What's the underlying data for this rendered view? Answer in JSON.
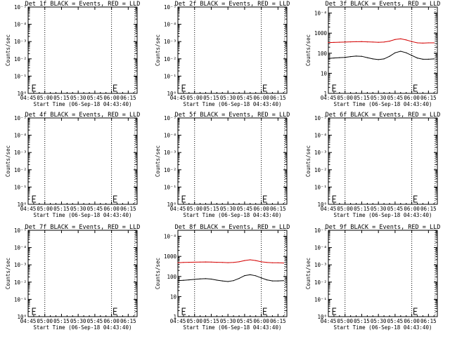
{
  "page": {
    "background": "#ffffff",
    "axis_color": "#000000"
  },
  "x_tick_labels": [
    "04:45",
    "05:00",
    "05:15",
    "05:30",
    "05:45",
    "06:00",
    "06:15"
  ],
  "x_tick_minutes": [
    285,
    300,
    315,
    330,
    345,
    360,
    375
  ],
  "xlim_minutes": [
    285,
    383
  ],
  "xlabel": "Start Time (06-Sep-18 04:43:40)",
  "ylabel": "Counts/sec",
  "chart_data": [
    {
      "id": "det1",
      "type": "line",
      "title": "Det 1f BLACK = Events, RED = LLD",
      "scale": "log",
      "yticks": [
        1,
        10,
        100,
        1000,
        10000,
        100000
      ],
      "ytick_labels": [
        "10⁰",
        "10⁻¹",
        "10⁻²",
        "10⁻³",
        "10⁻⁴",
        "10⁻⁵"
      ],
      "ylim": [
        1,
        100000
      ],
      "dotted_vlines_minutes": [
        300,
        360,
        381
      ],
      "error_markers_minutes": [
        287,
        360
      ],
      "series": []
    },
    {
      "id": "det2",
      "type": "line",
      "title": "Det 2f BLACK = Events, RED = LLD",
      "scale": "log",
      "yticks": [
        1,
        10,
        100,
        1000,
        10000,
        100000
      ],
      "ytick_labels": [
        "10⁰",
        "10⁻¹",
        "10⁻²",
        "10⁻³",
        "10⁻⁴",
        "10⁻⁵"
      ],
      "ylim": [
        1,
        100000
      ],
      "dotted_vlines_minutes": [
        300,
        360,
        381
      ],
      "error_markers_minutes": [
        287,
        360
      ],
      "series": []
    },
    {
      "id": "det3",
      "type": "line",
      "title": "Det 3f BLACK = Events, RED = LLD",
      "scale": "log",
      "yticks": [
        1,
        10,
        100,
        1000,
        10000
      ],
      "ytick_labels": [
        "1",
        "10",
        "100",
        "1000",
        "10⁻⁴"
      ],
      "ylim": [
        1,
        20000
      ],
      "dotted_vlines_minutes": [
        300,
        360,
        381
      ],
      "error_markers_minutes": [
        287,
        360
      ],
      "series": [
        {
          "color": "#d40000",
          "x": [
            285,
            290,
            295,
            300,
            305,
            310,
            315,
            320,
            325,
            330,
            335,
            340,
            345,
            350,
            355,
            360,
            365,
            370,
            375,
            380
          ],
          "y": [
            340,
            345,
            355,
            360,
            370,
            375,
            380,
            370,
            360,
            350,
            360,
            400,
            480,
            520,
            460,
            380,
            330,
            320,
            330,
            330
          ]
        },
        {
          "color": "#000000",
          "x": [
            285,
            290,
            295,
            300,
            305,
            310,
            315,
            320,
            325,
            330,
            335,
            340,
            345,
            350,
            355,
            360,
            365,
            370,
            375,
            380
          ],
          "y": [
            55,
            58,
            60,
            62,
            68,
            72,
            70,
            60,
            52,
            48,
            52,
            70,
            105,
            125,
            105,
            78,
            58,
            50,
            50,
            52
          ]
        }
      ]
    },
    {
      "id": "det4",
      "type": "line",
      "title": "Det 4f BLACK = Events, RED = LLD",
      "scale": "log",
      "yticks": [
        1,
        10,
        100,
        1000,
        10000,
        100000
      ],
      "ytick_labels": [
        "10⁰",
        "10⁻¹",
        "10⁻²",
        "10⁻³",
        "10⁻⁴",
        "10⁻⁵"
      ],
      "ylim": [
        1,
        100000
      ],
      "dotted_vlines_minutes": [
        300,
        360,
        381
      ],
      "error_markers_minutes": [
        287,
        360
      ],
      "series": []
    },
    {
      "id": "det5",
      "type": "line",
      "title": "Det 5f BLACK = Events, RED = LLD",
      "scale": "log",
      "yticks": [
        1,
        10,
        100,
        1000,
        10000,
        100000
      ],
      "ytick_labels": [
        "10⁰",
        "10⁻¹",
        "10⁻²",
        "10⁻³",
        "10⁻⁴",
        "10⁻⁵"
      ],
      "ylim": [
        1,
        100000
      ],
      "dotted_vlines_minutes": [
        300,
        360,
        381
      ],
      "error_markers_minutes": [
        287,
        360
      ],
      "series": []
    },
    {
      "id": "det6",
      "type": "line",
      "title": "Det 6f BLACK = Events, RED = LLD",
      "scale": "log",
      "yticks": [
        1,
        10,
        100,
        1000,
        10000,
        100000
      ],
      "ytick_labels": [
        "10⁰",
        "10⁻¹",
        "10⁻²",
        "10⁻³",
        "10⁻⁴",
        "10⁻⁵"
      ],
      "ylim": [
        1,
        100000
      ],
      "dotted_vlines_minutes": [
        300,
        360,
        381
      ],
      "error_markers_minutes": [
        287,
        360
      ],
      "series": []
    },
    {
      "id": "det7",
      "type": "line",
      "title": "Det 7f BLACK = Events, RED = LLD",
      "scale": "log",
      "yticks": [
        1,
        10,
        100,
        1000,
        10000,
        100000
      ],
      "ytick_labels": [
        "10⁰",
        "10⁻¹",
        "10⁻²",
        "10⁻³",
        "10⁻⁴",
        "10⁻⁵"
      ],
      "ylim": [
        1,
        100000
      ],
      "dotted_vlines_minutes": [
        300,
        360,
        381
      ],
      "error_markers_minutes": [
        287,
        360
      ],
      "series": []
    },
    {
      "id": "det8",
      "type": "line",
      "title": "Det 8f BLACK = Events, RED = LLD",
      "scale": "log",
      "yticks": [
        1,
        10,
        100,
        1000,
        10000
      ],
      "ytick_labels": [
        "1",
        "10",
        "100",
        "1000",
        "10⁻⁴"
      ],
      "ylim": [
        1,
        20000
      ],
      "dotted_vlines_minutes": [
        300,
        360,
        381
      ],
      "error_markers_minutes": [
        287,
        360
      ],
      "series": [
        {
          "color": "#d40000",
          "x": [
            285,
            290,
            295,
            300,
            305,
            310,
            315,
            320,
            325,
            330,
            335,
            340,
            345,
            350,
            355,
            360,
            365,
            370,
            375,
            380
          ],
          "y": [
            480,
            500,
            510,
            515,
            520,
            530,
            520,
            510,
            500,
            490,
            500,
            540,
            620,
            680,
            620,
            540,
            500,
            480,
            480,
            470
          ]
        },
        {
          "color": "#000000",
          "x": [
            285,
            290,
            295,
            300,
            305,
            310,
            315,
            320,
            325,
            330,
            335,
            340,
            345,
            350,
            355,
            360,
            365,
            370,
            375,
            380
          ],
          "y": [
            62,
            65,
            68,
            72,
            76,
            78,
            74,
            66,
            60,
            56,
            62,
            80,
            110,
            122,
            108,
            85,
            68,
            60,
            60,
            62
          ]
        }
      ]
    },
    {
      "id": "det9",
      "type": "line",
      "title": "Det 9f BLACK = Events, RED = LLD",
      "scale": "log",
      "yticks": [
        1,
        10,
        100,
        1000,
        10000,
        100000
      ],
      "ytick_labels": [
        "10⁰",
        "10⁻¹",
        "10⁻²",
        "10⁻³",
        "10⁻⁴",
        "10⁻⁵"
      ],
      "ylim": [
        1,
        100000
      ],
      "dotted_vlines_minutes": [
        300,
        360,
        381
      ],
      "error_markers_minutes": [
        287,
        360
      ],
      "series": []
    }
  ]
}
